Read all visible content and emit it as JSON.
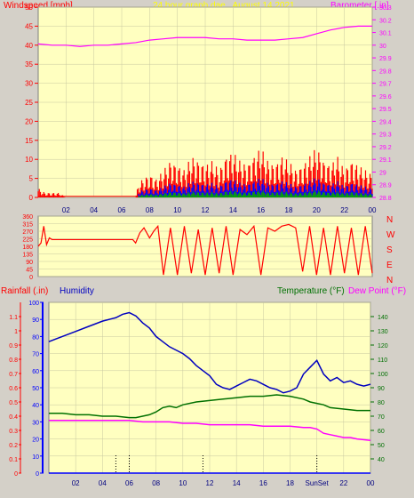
{
  "header": {
    "left_label": "Windspeed [mph]",
    "center_label": "24 hour graph dae , August 14 2021",
    "right_label": "Barometer [.in]"
  },
  "labels": {
    "rainfall": "Rainfall (.in)",
    "humidity": "Humidity",
    "temperature": "Temperature (°F)",
    "dewpoint": "Dew Point (°F)",
    "sunset": "SunSet"
  },
  "colors": {
    "frame_bg": "#d4d0c8",
    "plot_bg": "#ffffc0",
    "grid": "#c8c8a0",
    "wind": "#ff0000",
    "gust_blue": "#0000ff",
    "gust_green": "#00aa00",
    "barometer": "#ff00ff",
    "direction": "#ff0000",
    "humidity": "#0000c0",
    "temperature": "#007000",
    "dewpoint": "#ff00ff",
    "rainfall_axis": "#ff0000",
    "humidity_axis": "#0000ff",
    "temp_axis": "#007000"
  },
  "chart_data": [
    {
      "type": "area",
      "xlim": [
        0,
        24
      ],
      "x_ticks": [
        "02",
        "04",
        "06",
        "08",
        "10",
        "12",
        "14",
        "16",
        "18",
        "20",
        "22",
        "00"
      ],
      "left_axis": {
        "label": "Windspeed [mph]",
        "ylim": [
          0,
          50
        ],
        "ticks": [
          "0",
          "5",
          "10",
          "15",
          "20",
          "25",
          "30",
          "35",
          "40",
          "45",
          "50"
        ]
      },
      "right_axis": {
        "label": "Barometer [.in]",
        "ylim": [
          28.8,
          30.3
        ],
        "ticks": [
          "28.8",
          "28.9",
          "29",
          "29.1",
          "29.2",
          "29.3",
          "29.4",
          "29.5",
          "29.6",
          "29.7",
          "29.8",
          "29.9",
          "30",
          "30.1",
          "30.2",
          "30.3"
        ]
      },
      "series": [
        {
          "name": "Windspeed [mph]",
          "axis": "left",
          "note": "wind gust",
          "x": [
            0,
            0.5,
            1,
            1.5,
            2,
            2.5,
            3,
            4,
            5,
            6,
            7,
            7.2,
            7.5,
            8,
            8.5,
            9,
            9.5,
            10,
            10.5,
            11,
            11.5,
            12,
            12.5,
            13,
            13.5,
            14,
            14.5,
            15,
            15.5,
            16,
            16.5,
            17,
            17.5,
            18,
            18.5,
            19,
            19.5,
            20,
            20.5,
            21,
            21.5,
            22,
            22.5,
            23,
            23.5,
            24
          ],
          "y": [
            2,
            1,
            1,
            1,
            0,
            0,
            0,
            0,
            0,
            0,
            0,
            3,
            4,
            5,
            4,
            6,
            8,
            7,
            6,
            9,
            8,
            7,
            8,
            6,
            9,
            10,
            8,
            7,
            9,
            11,
            8,
            7,
            9,
            8,
            6,
            7,
            9,
            11,
            8,
            7,
            9,
            6,
            8,
            7,
            6,
            5
          ]
        },
        {
          "name": "Barometer [.in]",
          "axis": "right",
          "x": [
            0,
            1,
            2,
            3,
            4,
            5,
            6,
            7,
            8,
            9,
            10,
            11,
            12,
            13,
            14,
            15,
            16,
            17,
            18,
            19,
            20,
            21,
            22,
            23,
            24
          ],
          "y": [
            30.01,
            30.0,
            30.0,
            29.99,
            30.0,
            30.0,
            30.01,
            30.02,
            30.04,
            30.05,
            30.06,
            30.06,
            30.06,
            30.05,
            30.05,
            30.04,
            30.04,
            30.04,
            30.05,
            30.06,
            30.09,
            30.12,
            30.14,
            30.15,
            30.15
          ]
        }
      ]
    },
    {
      "type": "line",
      "xlim": [
        0,
        24
      ],
      "ylim": [
        0,
        360
      ],
      "y_ticks": [
        "0",
        "45",
        "90",
        "135",
        "180",
        "225",
        "270",
        "315",
        "360"
      ],
      "right_labels": [
        "N",
        "W",
        "S",
        "E",
        "N"
      ],
      "series": [
        {
          "name": "Wind direction",
          "x": [
            0,
            0.2,
            0.4,
            0.6,
            0.8,
            1,
            1.5,
            3,
            5,
            6,
            6.8,
            7.0,
            7.3,
            7.6,
            8.0,
            8.3,
            8.6,
            9.0,
            9.5,
            10,
            10.5,
            11,
            11.5,
            12,
            12.5,
            13,
            13.5,
            14,
            14.5,
            15,
            15.5,
            16,
            16.5,
            17,
            17.5,
            18,
            18.5,
            19,
            19.5,
            20,
            20.5,
            21,
            21.5,
            22,
            22.5,
            23,
            23.5,
            24
          ],
          "y": [
            180,
            200,
            300,
            190,
            230,
            220,
            220,
            220,
            220,
            220,
            220,
            200,
            260,
            290,
            230,
            270,
            300,
            10,
            290,
            10,
            300,
            20,
            280,
            10,
            290,
            20,
            300,
            10,
            280,
            250,
            300,
            10,
            290,
            270,
            300,
            310,
            290,
            30,
            300,
            10,
            290,
            10,
            300,
            20,
            290,
            10,
            300,
            20
          ]
        }
      ]
    },
    {
      "type": "line",
      "xlim": [
        0,
        24
      ],
      "x_ticks": [
        "02",
        "04",
        "06",
        "08",
        "10",
        "12",
        "14",
        "16",
        "18",
        "SunSet",
        "22",
        "00"
      ],
      "axes": {
        "rainfall": {
          "label": "Rainfall (.in)",
          "ylim": [
            0,
            1.2
          ],
          "ticks": [
            "0",
            "0.1",
            "0.2",
            "0.3",
            "0.4",
            "0.5",
            "0.6",
            "0.7",
            "0.8",
            "0.9",
            "1",
            "1.1"
          ]
        },
        "humidity": {
          "label": "Humidity",
          "ylim": [
            0,
            100
          ],
          "ticks": [
            "0",
            "10",
            "20",
            "30",
            "40",
            "50",
            "60",
            "70",
            "80",
            "90",
            "100"
          ]
        },
        "temperature": {
          "label": "Temperature (°F)",
          "ylim": [
            30,
            150
          ],
          "ticks": [
            "40",
            "50",
            "60",
            "70",
            "80",
            "90",
            "100",
            "110",
            "120",
            "130",
            "140"
          ]
        }
      },
      "series": [
        {
          "name": "Humidity",
          "axis": "humidity",
          "x": [
            0,
            1,
            2,
            3,
            4,
            5,
            5.5,
            6,
            6.5,
            7,
            7.5,
            8,
            8.5,
            9,
            9.5,
            10,
            10.5,
            11,
            11.5,
            12,
            12.5,
            13,
            13.5,
            14,
            14.5,
            15,
            15.5,
            16,
            16.5,
            17,
            17.5,
            18,
            18.5,
            19,
            19.5,
            20,
            20.5,
            21,
            21.5,
            22,
            22.5,
            23,
            23.5,
            24
          ],
          "y": [
            77,
            80,
            83,
            86,
            89,
            91,
            93,
            94,
            92,
            88,
            85,
            80,
            77,
            74,
            72,
            70,
            67,
            63,
            60,
            57,
            52,
            50,
            49,
            51,
            53,
            55,
            54,
            52,
            50,
            49,
            47,
            48,
            50,
            58,
            62,
            66,
            58,
            54,
            56,
            53,
            54,
            52,
            51,
            52
          ]
        },
        {
          "name": "Temperature (°F)",
          "axis": "temperature",
          "x": [
            0,
            1,
            2,
            3,
            4,
            5,
            6,
            6.5,
            7,
            7.5,
            8,
            8.5,
            9,
            9.5,
            10,
            11,
            12,
            13,
            14,
            15,
            16,
            17,
            18,
            19,
            19.5,
            20,
            20.5,
            21,
            22,
            23,
            24
          ],
          "y": [
            72,
            72,
            71,
            71,
            70,
            70,
            69,
            69,
            70,
            71,
            73,
            76,
            77,
            76,
            78,
            80,
            81,
            82,
            83,
            84,
            84,
            85,
            84,
            82,
            80,
            79,
            78,
            76,
            75,
            74,
            74
          ]
        },
        {
          "name": "Dew Point (°F)",
          "axis": "temperature",
          "x": [
            0,
            1,
            2,
            3,
            4,
            5,
            6,
            7,
            8,
            9,
            10,
            11,
            12,
            13,
            14,
            15,
            16,
            17,
            18,
            19,
            19.5,
            20,
            20.5,
            21,
            21.5,
            22,
            22.5,
            23,
            24
          ],
          "y": [
            67,
            67,
            67,
            67,
            67,
            67,
            67,
            66,
            66,
            66,
            65,
            65,
            64,
            64,
            64,
            64,
            63,
            63,
            63,
            62,
            62,
            61,
            58,
            57,
            56,
            55,
            55,
            54,
            53
          ]
        },
        {
          "name": "Rainfall (.in)",
          "axis": "rainfall",
          "x": [
            0,
            24
          ],
          "y": [
            0,
            0
          ]
        }
      ],
      "markers": [
        {
          "x": 5.0,
          "style": "dotted"
        },
        {
          "x": 6.0,
          "style": "dotted"
        },
        {
          "x": 11.5,
          "style": "dotted"
        },
        {
          "x": 20.0,
          "style": "dotted",
          "label": "SunSet"
        }
      ]
    }
  ]
}
